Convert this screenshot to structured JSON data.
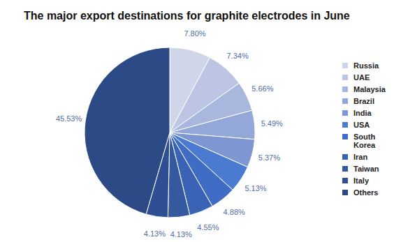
{
  "chart_data": {
    "type": "pie",
    "title": "The major export destinations for graphite electrodes in June",
    "categories": [
      "Russia",
      "UAE",
      "Malaysia",
      "Brazil",
      "India",
      "USA",
      "South Korea",
      "Iran",
      "Taiwan",
      "Italy",
      "Others"
    ],
    "values": [
      7.8,
      7.34,
      5.66,
      5.49,
      5.37,
      5.13,
      4.88,
      4.55,
      4.13,
      4.13,
      45.53
    ],
    "value_labels": [
      "7.80%",
      "7.34%",
      "5.66%",
      "5.49%",
      "5.37%",
      "5.13%",
      "4.88%",
      "4.55%",
      "4.13%",
      "4.13%",
      "45.53%"
    ],
    "colors": [
      "#d0d6ea",
      "#bcc6e4",
      "#a8b7de",
      "#93a7d9",
      "#7e96d1",
      "#4a7bd0",
      "#3f6cc4",
      "#3a62b5",
      "#35599f",
      "#2f4f94",
      "#2b4a86"
    ],
    "data_labels": true,
    "legend": "right"
  }
}
